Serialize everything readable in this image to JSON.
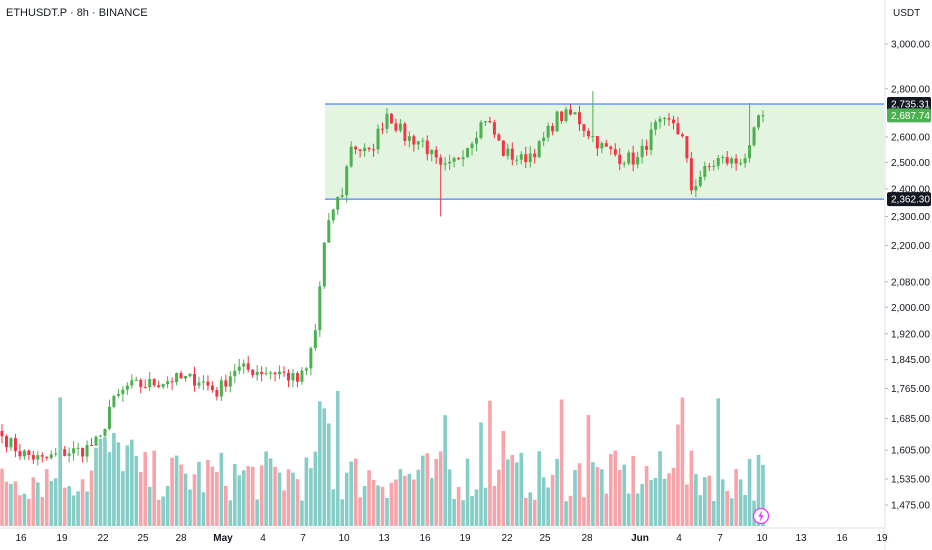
{
  "header": {
    "symbol": "ETHUSDT.P",
    "interval": "8h",
    "exchange": "BINANCE",
    "title": "ETHUSDT.P · 8h · BINANCE",
    "currency": "USDT"
  },
  "colors": {
    "up": "#4caf50",
    "down": "#f23645",
    "volume_up": "#85cdc6",
    "volume_down": "#f6a3a9",
    "range_fill": "#e3f5e0",
    "range_line": "#2962ff",
    "axis_text": "#131722",
    "gridline": "#f0f3fa"
  },
  "chart_data": {
    "type": "candlestick",
    "price_scale": "log",
    "y_ticks": [
      "3,000.00",
      "2,800.00",
      "2,600.00",
      "2,500.00",
      "2,400.00",
      "2,300.00",
      "2,200.00",
      "2,080.00",
      "2,000.00",
      "1,920.00",
      "1,845.00",
      "1,765.00",
      "1,685.00",
      "1,605.00",
      "1,535.00",
      "1,475.00"
    ],
    "y_range": [
      1450,
      3050
    ],
    "x_ticks": [
      "16",
      "19",
      "22",
      "25",
      "28",
      "May",
      "4",
      "7",
      "10",
      "13",
      "16",
      "19",
      "22",
      "25",
      "28",
      "Jun",
      "4",
      "7",
      "10",
      "13",
      "16",
      "19"
    ],
    "price_labels": [
      {
        "label": "2,735.31",
        "value": 2735.31,
        "style": "dark"
      },
      {
        "label": "2,687.74",
        "value": 2687.74,
        "style": "green"
      },
      {
        "label": "2,362.30",
        "value": 2362.3,
        "style": "dark"
      }
    ],
    "range_box": {
      "top": 2735.31,
      "bottom": 2362.3
    },
    "candle_count": 171,
    "close_keypoints": [
      {
        "i": 0,
        "c": 1640
      },
      {
        "i": 4,
        "c": 1600
      },
      {
        "i": 9,
        "c": 1580
      },
      {
        "i": 14,
        "c": 1600
      },
      {
        "i": 18,
        "c": 1605
      },
      {
        "i": 22,
        "c": 1630
      },
      {
        "i": 24,
        "c": 1715
      },
      {
        "i": 28,
        "c": 1770
      },
      {
        "i": 32,
        "c": 1775
      },
      {
        "i": 38,
        "c": 1790
      },
      {
        "i": 44,
        "c": 1790
      },
      {
        "i": 48,
        "c": 1755
      },
      {
        "i": 52,
        "c": 1820
      },
      {
        "i": 56,
        "c": 1815
      },
      {
        "i": 62,
        "c": 1810
      },
      {
        "i": 66,
        "c": 1785
      },
      {
        "i": 68,
        "c": 1815
      },
      {
        "i": 70,
        "c": 1930
      },
      {
        "i": 72,
        "c": 2200
      },
      {
        "i": 74,
        "c": 2330
      },
      {
        "i": 76,
        "c": 2390
      },
      {
        "i": 78,
        "c": 2570
      },
      {
        "i": 82,
        "c": 2530
      },
      {
        "i": 86,
        "c": 2700
      },
      {
        "i": 90,
        "c": 2600
      },
      {
        "i": 94,
        "c": 2580
      },
      {
        "i": 98,
        "c": 2470
      },
      {
        "i": 100,
        "c": 2480
      },
      {
        "i": 104,
        "c": 2570
      },
      {
        "i": 108,
        "c": 2680
      },
      {
        "i": 112,
        "c": 2540
      },
      {
        "i": 116,
        "c": 2510
      },
      {
        "i": 120,
        "c": 2560
      },
      {
        "i": 124,
        "c": 2680
      },
      {
        "i": 128,
        "c": 2690
      },
      {
        "i": 130,
        "c": 2640
      },
      {
        "i": 134,
        "c": 2560
      },
      {
        "i": 138,
        "c": 2520
      },
      {
        "i": 142,
        "c": 2510
      },
      {
        "i": 146,
        "c": 2640
      },
      {
        "i": 150,
        "c": 2660
      },
      {
        "i": 152,
        "c": 2590
      },
      {
        "i": 154,
        "c": 2400
      },
      {
        "i": 156,
        "c": 2450
      },
      {
        "i": 160,
        "c": 2510
      },
      {
        "i": 164,
        "c": 2500
      },
      {
        "i": 167,
        "c": 2540
      },
      {
        "i": 169,
        "c": 2680
      },
      {
        "i": 170,
        "c": 2688
      }
    ],
    "volume": {
      "scale_max": 100,
      "spike_count": 14
    }
  }
}
